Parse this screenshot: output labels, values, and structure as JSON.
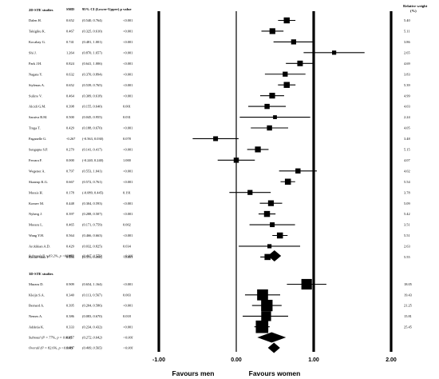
{
  "chart_data": {
    "type": "forest",
    "columns": {
      "study": "",
      "smd": "SMD",
      "ci": "95% CI (Lower-Upper)",
      "p": "p value",
      "weight": "Relative weight",
      "weight_unit": "(%)"
    },
    "x_ticks": [
      "-1.00",
      "0.00",
      "1.00",
      "2.00"
    ],
    "xlim": [
      -1.0,
      2.0
    ],
    "favours_left": "Favours men",
    "favours_right": "Favours women",
    "groups": [
      {
        "title": "2D-STE studies",
        "studies": [
          {
            "name": "Dalen H.",
            "smd": "0.652",
            "ci": "(0.540, 0.764)",
            "p": "<0.001",
            "weight": "5.40",
            "est": 0.652,
            "lo": 0.54,
            "hi": 0.764
          },
          {
            "name": "Takigiku K.",
            "smd": "0.467",
            "ci": "(0.325, 0.610)",
            "p": "<0.001",
            "weight": "5.11",
            "est": 0.467,
            "lo": 0.325,
            "hi": 0.61
          },
          {
            "name": "Kocabay G.",
            "smd": "0.741",
            "ci": "(0.481, 1.001)",
            "p": "<0.001",
            "weight": "3.86",
            "est": 0.741,
            "lo": 0.481,
            "hi": 1.001
          },
          {
            "name": "Shi J.",
            "smd": "1.264",
            "ci": "(0.870, 1.657)",
            "p": "<0.001",
            "weight": "2.65",
            "est": 1.264,
            "lo": 0.87,
            "hi": 1.657
          },
          {
            "name": "Park J.H.",
            "smd": "0.824",
            "ci": "(0.641, 1.006)",
            "p": "<0.001",
            "weight": "4.69",
            "est": 0.824,
            "lo": 0.641,
            "hi": 1.006
          },
          {
            "name": "Nagata Y.",
            "smd": "0.632",
            "ci": "(0.370, 0.894)",
            "p": "<0.001",
            "weight": "3.83",
            "est": 0.632,
            "lo": 0.37,
            "hi": 0.894
          },
          {
            "name": "Stylenas A.",
            "smd": "0.652",
            "ci": "(0.539, 0.765)",
            "p": "<0.001",
            "weight": "5.39",
            "est": 0.652,
            "lo": 0.539,
            "hi": 0.765
          },
          {
            "name": "Sulirre V.",
            "smd": "0.464",
            "ci": "(0.309, 0.618)",
            "p": "<0.001",
            "weight": "4.99",
            "est": 0.464,
            "lo": 0.309,
            "hi": 0.618
          },
          {
            "name": "Alcidi G.M.",
            "smd": "0.398",
            "ci": "(0.155, 0.640)",
            "p": "0.001",
            "weight": "4.03",
            "est": 0.398,
            "lo": 0.155,
            "hi": 0.64
          },
          {
            "name": "Saraiva R.M.",
            "smd": "0.500",
            "ci": "(0.045, 0.955)",
            "p": "0.031",
            "weight": "2.24",
            "est": 0.5,
            "lo": 0.045,
            "hi": 0.955
          },
          {
            "name": "Truga T.",
            "smd": "0.429",
            "ci": "(0.188, 0.670)",
            "p": "<0.001",
            "weight": "4.05",
            "est": 0.429,
            "lo": 0.188,
            "hi": 0.67
          },
          {
            "name": "Paganelle G.",
            "smd": "-0.267",
            "ci": "(-0.563, 0.030)",
            "p": "0.078",
            "weight": "3.48",
            "est": -0.267,
            "lo": -0.563,
            "hi": 0.03
          },
          {
            "name": "Sengupta S.P.",
            "smd": "0.279",
            "ci": "(0.141, 0.417)",
            "p": "<0.001",
            "weight": "5.15",
            "est": 0.279,
            "lo": 0.141,
            "hi": 0.417
          },
          {
            "name": "Ferrara F.",
            "smd": "0.000",
            "ci": "(-0.240, 0.240)",
            "p": "1.000",
            "weight": "4.07",
            "est": 0.0,
            "lo": -0.24,
            "hi": 0.24
          },
          {
            "name": "Wegener A.",
            "smd": "0.797",
            "ci": "(0.553, 1.041)",
            "p": "<0.001",
            "weight": "4.02",
            "est": 0.797,
            "lo": 0.553,
            "hi": 1.041
          },
          {
            "name": "Skaarup K.G.",
            "smd": "0.667",
            "ci": "(0.572, 0.761)",
            "p": "<0.001",
            "weight": "5.54",
            "est": 0.667,
            "lo": 0.572,
            "hi": 0.761
          },
          {
            "name": "Morais H.",
            "smd": "0.178",
            "ci": "(-0.089, 0.445)",
            "p": "0.191",
            "weight": "3.78",
            "est": 0.178,
            "lo": -0.089,
            "hi": 0.445
          },
          {
            "name": "Komev M.",
            "smd": "0.448",
            "ci": "(0.304, 0.593)",
            "p": "<0.001",
            "weight": "5.09",
            "est": 0.448,
            "lo": 0.304,
            "hi": 0.593
          },
          {
            "name": "Nyberg J.",
            "smd": "0.397",
            "ci": "(0.288, 0.507)",
            "p": "<0.001",
            "weight": "5.42",
            "est": 0.397,
            "lo": 0.288,
            "hi": 0.507
          },
          {
            "name": "Moraru L.",
            "smd": "0.465",
            "ci": "(0.171, 0.759)",
            "p": "0.002",
            "weight": "3.51",
            "est": 0.465,
            "lo": 0.171,
            "hi": 0.759
          },
          {
            "name": "Wang Y.H.",
            "smd": "0.564",
            "ci": "(0.466, 0.663)",
            "p": "<0.001",
            "weight": "5.51",
            "est": 0.564,
            "lo": 0.466,
            "hi": 0.663
          },
          {
            "name": "Arckikian A.D.",
            "smd": "0.429",
            "ci": "(0.032, 0.825)",
            "p": "0.034",
            "weight": "2.63",
            "est": 0.429,
            "lo": 0.032,
            "hi": 0.825
          },
          {
            "name": "Kotini-Shah P.",
            "smd": "0.404",
            "ci": "(0.311, 0.498)",
            "p": "<0.001",
            "weight": "5.55",
            "est": 0.404,
            "lo": 0.311,
            "hi": 0.498
          }
        ],
        "subtotal": {
          "label": "Subtotal (I² = 83.2%, p <0.001)",
          "smd": "0.493",
          "ci": "(0.407, 0.579)",
          "p": "<0.001",
          "est": 0.493,
          "lo": 0.407,
          "hi": 0.579
        }
      },
      {
        "title": "3D-STE studies",
        "studies": [
          {
            "name": "Muraru D.",
            "smd": "0.909",
            "ci": "(0.654, 1.164)",
            "p": "<0.001",
            "weight": "18.05",
            "est": 0.909,
            "lo": 0.654,
            "hi": 1.164
          },
          {
            "name": "Kleijn S.A.",
            "smd": "0.340",
            "ci": "(0.113, 0.567)",
            "p": "0.003",
            "weight": "19.43",
            "est": 0.34,
            "lo": 0.113,
            "hi": 0.567
          },
          {
            "name": "Bernard A.",
            "smd": "0.395",
            "ci": "(0.204, 0.586)",
            "p": "<0.001",
            "weight": "21.25",
            "est": 0.395,
            "lo": 0.204,
            "hi": 0.586
          },
          {
            "name": "Nemes A.",
            "smd": "0.386",
            "ci": "(0.083, 0.670)",
            "p": "0.018",
            "weight": "15.81",
            "est": 0.386,
            "lo": 0.083,
            "hi": 0.67
          },
          {
            "name": "Addetia K.",
            "smd": "0.333",
            "ci": "(0.234, 0.432)",
            "p": "<0.001",
            "weight": "25.45",
            "est": 0.333,
            "lo": 0.234,
            "hi": 0.432
          }
        ],
        "subtotal": {
          "label": "Subtotal (I² = 77%, p = 0.002)",
          "smd": "0.457",
          "ci": "(0.272, 0.642)",
          "p": "<0.001",
          "est": 0.457,
          "lo": 0.272,
          "hi": 0.642
        }
      }
    ],
    "overall": {
      "label": "Overall (I² = 82.6%, p <0.001)",
      "smd": "0.487",
      "ci": "(0.409, 0.565)",
      "p": "<0.001",
      "est": 0.487,
      "lo": 0.409,
      "hi": 0.565
    }
  }
}
